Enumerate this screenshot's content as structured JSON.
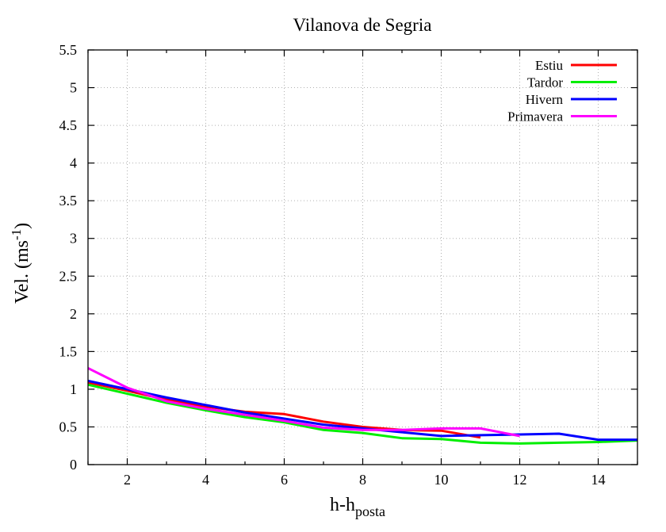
{
  "chart_data": {
    "type": "line",
    "title": "Vilanova de Segria",
    "xlabel": "h-h",
    "xlabel_sub": "posta",
    "ylabel": "Vel. (ms",
    "ylabel_sup": "-1",
    "ylabel_close": ")",
    "xlim": [
      1,
      15
    ],
    "ylim": [
      0,
      5.5
    ],
    "xticks": [
      2,
      4,
      6,
      8,
      10,
      12,
      14
    ],
    "yticks": [
      0,
      0.5,
      1,
      1.5,
      2,
      2.5,
      3,
      3.5,
      4,
      4.5,
      5,
      5.5
    ],
    "ytick_labels": [
      "0",
      "0.5",
      "1",
      "1.5",
      "2",
      "2.5",
      "3",
      "3.5",
      "4",
      "4.5",
      "5",
      "5.5"
    ],
    "grid": true,
    "legend_position": "top-right",
    "series": [
      {
        "name": "Estiu",
        "color": "#ff0000",
        "x": [
          1,
          2,
          3,
          4,
          5,
          6,
          7,
          8,
          9,
          10,
          11
        ],
        "y": [
          1.09,
          0.98,
          0.86,
          0.77,
          0.7,
          0.67,
          0.57,
          0.5,
          0.46,
          0.45,
          0.36
        ]
      },
      {
        "name": "Tardor",
        "color": "#00ee00",
        "x": [
          1,
          2,
          3,
          4,
          5,
          6,
          7,
          8,
          9,
          10,
          11,
          12,
          13,
          14,
          15
        ],
        "y": [
          1.06,
          0.94,
          0.82,
          0.72,
          0.63,
          0.56,
          0.46,
          0.42,
          0.35,
          0.34,
          0.29,
          0.28,
          0.29,
          0.3,
          0.32
        ]
      },
      {
        "name": "Hivern",
        "color": "#0000ff",
        "x": [
          1,
          2,
          3,
          4,
          5,
          6,
          7,
          8,
          9,
          10,
          11,
          12,
          13,
          14,
          15
        ],
        "y": [
          1.11,
          1.0,
          0.89,
          0.79,
          0.69,
          0.61,
          0.53,
          0.48,
          0.43,
          0.38,
          0.39,
          0.4,
          0.41,
          0.33,
          0.33
        ]
      },
      {
        "name": "Primavera",
        "color": "#ff00ff",
        "x": [
          1,
          2,
          3,
          4,
          5,
          6,
          7,
          8,
          9,
          10,
          11,
          12
        ],
        "y": [
          1.28,
          1.02,
          0.84,
          0.74,
          0.66,
          0.58,
          0.49,
          0.46,
          0.46,
          0.48,
          0.48,
          0.38
        ]
      }
    ]
  }
}
